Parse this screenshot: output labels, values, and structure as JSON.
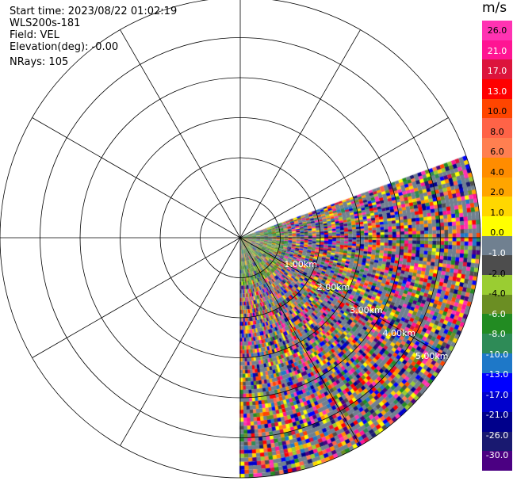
{
  "header": {
    "start_time": "Start time: 2023/08/22 01:02:19",
    "instrument": "WLS200s-181",
    "field": "Field: VEL",
    "elevation": "Elevation(deg): -0.00",
    "nrays": "NRays: 105"
  },
  "chart_data": {
    "type": "heatmap",
    "projection": "polar-ppi",
    "field": "VEL",
    "unit": "m/s",
    "elevation_deg": 0.0,
    "nrays": 105,
    "azimuth_range_deg": [
      70,
      180
    ],
    "max_range_km": 6.0,
    "range_rings_km": [
      1.0,
      2.0,
      3.0,
      4.0,
      5.0,
      6.0
    ],
    "range_ring_labels": [
      "1.00km",
      "2.00km",
      "3.00km",
      "4.00km",
      "5.00km"
    ],
    "spoke_step_deg": 30,
    "grid": true,
    "colorbar": {
      "label": "m/s",
      "tick_labels": [
        "26.0",
        "21.0",
        "17.0",
        "13.0",
        "10.0",
        "8.0",
        "6.0",
        "4.0",
        "2.0",
        "1.0",
        "0.0",
        "-1.0",
        "-2.0",
        "-4.0",
        "-6.0",
        "-8.0",
        "-10.0",
        "-13.0",
        "-17.0",
        "-21.0",
        "-26.0",
        "-30.0"
      ],
      "colors": [
        "#ff33b2",
        "#ff1493",
        "#dc143c",
        "#ff0000",
        "#ff4500",
        "#ff6347",
        "#ff7f50",
        "#ff8c00",
        "#ffa500",
        "#ffd700",
        "#ffff00",
        "#708090",
        "#4d4d4d",
        "#9acd32",
        "#6b8e23",
        "#228b22",
        "#2e8b57",
        "#1e78c8",
        "#0000ff",
        "#0000cd",
        "#00008b",
        "#191970",
        "#4b0082"
      ]
    }
  }
}
